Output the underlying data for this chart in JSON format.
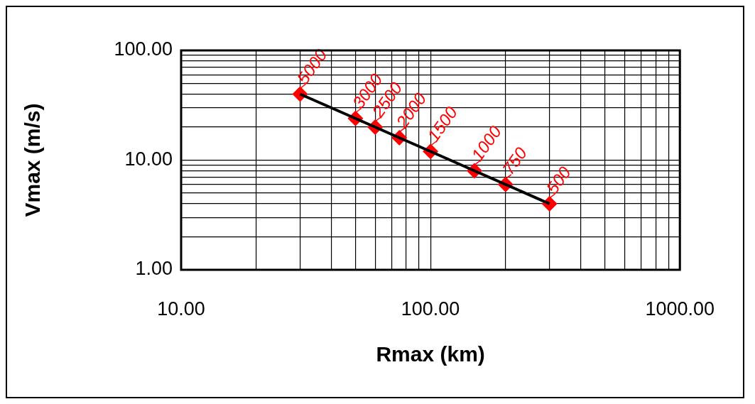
{
  "chart_data": {
    "type": "line",
    "xlabel": "Rmax (km)",
    "ylabel": "Vmax (m/s)",
    "log": "xy",
    "grid": true,
    "legend": false,
    "x": [
      30,
      50,
      60,
      75,
      100,
      150,
      200,
      300
    ],
    "series": [
      {
        "type": "line",
        "color": "#000000",
        "marker": "none",
        "values": [
          40,
          24,
          20,
          16,
          12,
          8,
          6,
          4
        ]
      },
      {
        "type": "scatter",
        "color": "#ff0000",
        "marker": "diamond",
        "values": [
          40,
          24,
          20,
          16,
          12,
          8,
          6,
          4
        ]
      }
    ],
    "xlim": [
      10,
      1000
    ],
    "ylim": [
      1,
      100
    ],
    "xticks": [
      {
        "value": 10,
        "label": "10.00"
      },
      {
        "value": 20,
        "label": null
      },
      {
        "value": 30,
        "label": null
      },
      {
        "value": 40,
        "label": null
      },
      {
        "value": 50,
        "label": null
      },
      {
        "value": 60,
        "label": null
      },
      {
        "value": 70,
        "label": null
      },
      {
        "value": 80,
        "label": null
      },
      {
        "value": 90,
        "label": null
      },
      {
        "value": 100,
        "label": "100.00"
      },
      {
        "value": 200,
        "label": null
      },
      {
        "value": 300,
        "label": null
      },
      {
        "value": 400,
        "label": null
      },
      {
        "value": 500,
        "label": null
      },
      {
        "value": 600,
        "label": null
      },
      {
        "value": 700,
        "label": null
      },
      {
        "value": 800,
        "label": null
      },
      {
        "value": 900,
        "label": null
      },
      {
        "value": 1000,
        "label": "1000.00"
      }
    ],
    "yticks": [
      {
        "value": 1,
        "label": "1.00"
      },
      {
        "value": 2,
        "label": null
      },
      {
        "value": 3,
        "label": null
      },
      {
        "value": 4,
        "label": null
      },
      {
        "value": 5,
        "label": null
      },
      {
        "value": 6,
        "label": null
      },
      {
        "value": 7,
        "label": null
      },
      {
        "value": 8,
        "label": null
      },
      {
        "value": 9,
        "label": null
      },
      {
        "value": 10,
        "label": "10.00"
      },
      {
        "value": 20,
        "label": null
      },
      {
        "value": 30,
        "label": null
      },
      {
        "value": 40,
        "label": null
      },
      {
        "value": 50,
        "label": null
      },
      {
        "value": 60,
        "label": null
      },
      {
        "value": 70,
        "label": null
      },
      {
        "value": 80,
        "label": null
      },
      {
        "value": 90,
        "label": null
      },
      {
        "value": 100,
        "label": "100.00"
      }
    ],
    "annotations": [
      {
        "text": "5000",
        "x": 30,
        "y": 40
      },
      {
        "text": "3000",
        "x": 50,
        "y": 24
      },
      {
        "text": "2500",
        "x": 60,
        "y": 20
      },
      {
        "text": "2000",
        "x": 75,
        "y": 16
      },
      {
        "text": "1500",
        "x": 100,
        "y": 12
      },
      {
        "text": "1000",
        "x": 150,
        "y": 8
      },
      {
        "text": "750",
        "x": 200,
        "y": 6
      },
      {
        "text": "500",
        "x": 300,
        "y": 4
      }
    ]
  }
}
